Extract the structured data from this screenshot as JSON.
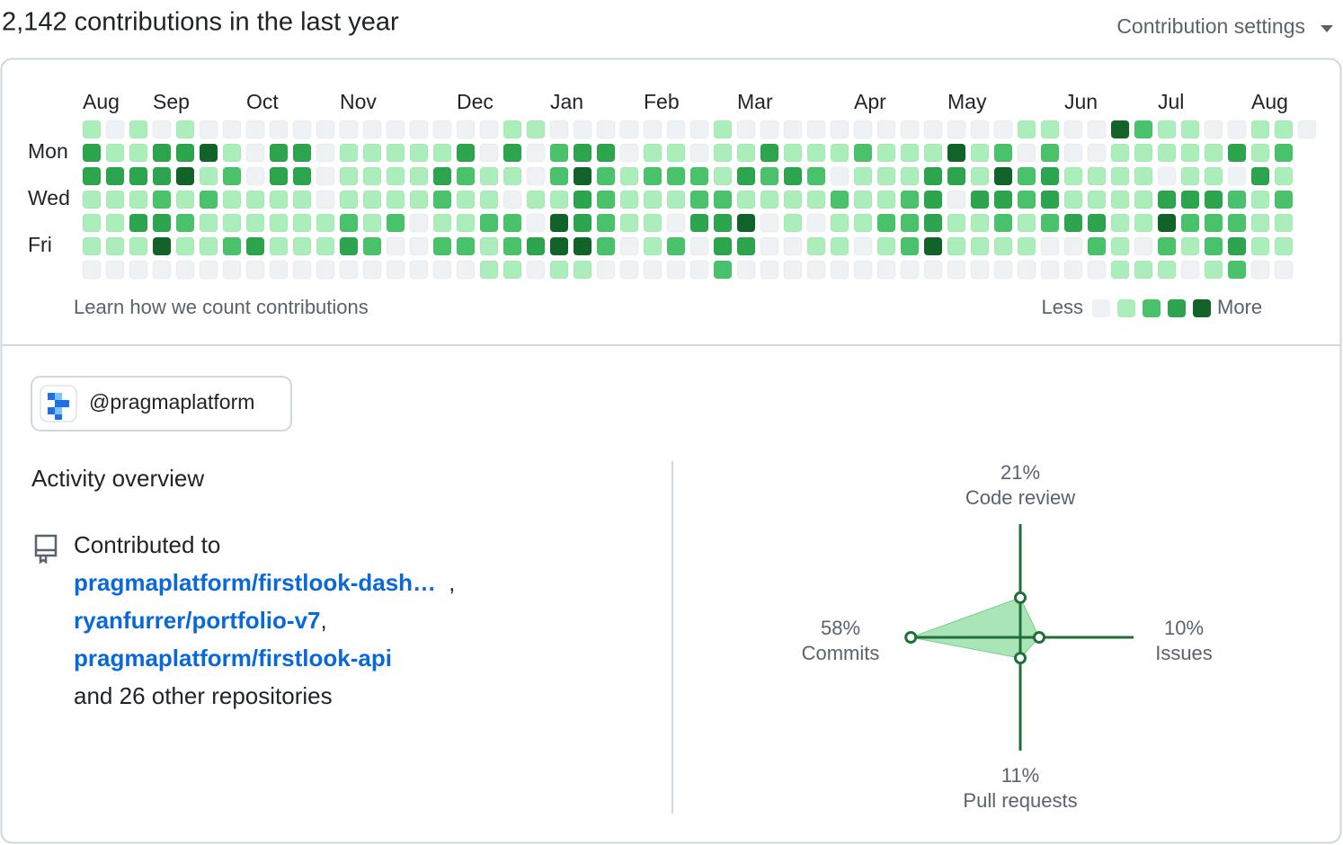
{
  "header": {
    "title": "2,142 contributions in the last year",
    "settings": "Contribution settings"
  },
  "calendar": {
    "month_labels": [
      "Aug",
      "Sep",
      "Oct",
      "Nov",
      "Dec",
      "Jan",
      "Feb",
      "Mar",
      "Apr",
      "May",
      "Jun",
      "Jul",
      "Aug"
    ],
    "month_starts": [
      0,
      3,
      7,
      11,
      16,
      20,
      24,
      28,
      33,
      37,
      42,
      46,
      50
    ],
    "day_labels": [
      null,
      "Mon",
      null,
      "Wed",
      null,
      "Fri",
      null
    ],
    "colors": [
      "#eff2f5",
      "#aceebb",
      "#4ac26b",
      "#2da44e",
      "#116329"
    ],
    "levels": [
      [
        1,
        0,
        1,
        0,
        1,
        0,
        0,
        0,
        0,
        0,
        0,
        0,
        0,
        0,
        0,
        0,
        0,
        0,
        1,
        1,
        0,
        0,
        0,
        0,
        0,
        0,
        0,
        1,
        0,
        0,
        0,
        0,
        0,
        0,
        0,
        0,
        0,
        0,
        0,
        0,
        1,
        1,
        0,
        0,
        4,
        2,
        1,
        1,
        0,
        0,
        1,
        1,
        0
      ],
      [
        3,
        1,
        1,
        3,
        3,
        4,
        1,
        0,
        3,
        3,
        0,
        1,
        1,
        1,
        1,
        1,
        3,
        0,
        3,
        0,
        2,
        3,
        3,
        0,
        1,
        1,
        0,
        1,
        1,
        3,
        1,
        1,
        1,
        2,
        1,
        1,
        1,
        4,
        1,
        2,
        0,
        2,
        0,
        0,
        1,
        1,
        1,
        1,
        1,
        3,
        1,
        2
      ],
      [
        3,
        3,
        3,
        3,
        4,
        1,
        2,
        0,
        3,
        3,
        0,
        1,
        1,
        1,
        1,
        3,
        2,
        1,
        1,
        0,
        2,
        4,
        2,
        1,
        2,
        2,
        2,
        1,
        3,
        2,
        3,
        2,
        0,
        1,
        1,
        1,
        3,
        3,
        1,
        4,
        2,
        3,
        1,
        1,
        1,
        1,
        0,
        1,
        1,
        0,
        3,
        1
      ],
      [
        1,
        1,
        1,
        2,
        1,
        2,
        1,
        1,
        1,
        1,
        0,
        1,
        1,
        1,
        1,
        2,
        1,
        1,
        0,
        1,
        1,
        3,
        2,
        1,
        1,
        1,
        2,
        2,
        1,
        1,
        1,
        1,
        2,
        1,
        1,
        2,
        3,
        0,
        3,
        3,
        2,
        3,
        1,
        1,
        1,
        1,
        3,
        3,
        3,
        2,
        1,
        2
      ],
      [
        1,
        1,
        3,
        3,
        2,
        1,
        1,
        1,
        1,
        1,
        1,
        2,
        1,
        2,
        0,
        1,
        1,
        2,
        2,
        0,
        4,
        3,
        2,
        1,
        1,
        0,
        3,
        3,
        4,
        0,
        1,
        0,
        1,
        1,
        2,
        2,
        3,
        1,
        1,
        2,
        1,
        2,
        3,
        3,
        1,
        1,
        4,
        2,
        2,
        2,
        1,
        1
      ],
      [
        1,
        1,
        1,
        4,
        1,
        1,
        2,
        3,
        1,
        1,
        1,
        3,
        2,
        0,
        0,
        2,
        2,
        1,
        2,
        3,
        4,
        4,
        2,
        0,
        1,
        2,
        0,
        3,
        3,
        0,
        0,
        1,
        1,
        0,
        1,
        2,
        4,
        1,
        1,
        1,
        1,
        0,
        0,
        2,
        1,
        0,
        2,
        1,
        2,
        3,
        1,
        1
      ],
      [
        0,
        0,
        0,
        0,
        0,
        0,
        0,
        0,
        0,
        0,
        0,
        0,
        0,
        0,
        0,
        0,
        0,
        1,
        1,
        0,
        1,
        1,
        0,
        0,
        0,
        0,
        0,
        2,
        0,
        0,
        0,
        0,
        0,
        0,
        0,
        0,
        0,
        0,
        0,
        0,
        0,
        0,
        0,
        0,
        1,
        1,
        1,
        0,
        1,
        2,
        0,
        0
      ]
    ],
    "learn": "Learn how we count contributions",
    "legend": {
      "less": "Less",
      "more": "More",
      "levels": [
        0,
        1,
        2,
        3,
        4
      ]
    }
  },
  "org": {
    "handle": "@pragmaplatform"
  },
  "activity": {
    "title": "Activity overview",
    "contributed": "Contributed to",
    "repos": [
      "pragmaplatform/firstlook-dash…",
      "ryanfurrer/portfolio-v7",
      "pragmaplatform/firstlook-api"
    ],
    "separator": ",",
    "others": "and 26 other repositories"
  },
  "chart_data": {
    "type": "radar",
    "rlim": [
      0,
      60
    ],
    "categories": [
      "Code review",
      "Issues",
      "Pull requests",
      "Commits"
    ],
    "values": [
      21,
      10,
      11,
      58
    ],
    "value_labels": [
      "21%",
      "10%",
      "11%",
      "58%"
    ],
    "color": "#216e39",
    "fill": "#6fd386"
  }
}
